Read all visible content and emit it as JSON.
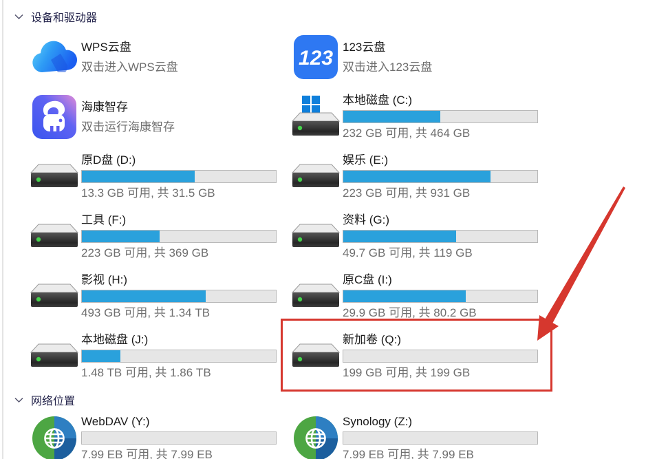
{
  "header": {
    "devices_label": "设备和驱动器",
    "network_label": "网络位置"
  },
  "tiles": [
    {
      "id": "wps-cloud",
      "icon": "wps-cloud",
      "title": "WPS云盘",
      "subtitle": "双击进入WPS云盘"
    },
    {
      "id": "123-cloud",
      "icon": "cloud-123",
      "title": "123云盘",
      "subtitle": "双击进入123云盘"
    },
    {
      "id": "hikvision",
      "icon": "hikvision",
      "title": "海康智存",
      "subtitle": "双击运行海康智存"
    },
    {
      "id": "drive-c",
      "icon": "windows-drive",
      "title": "本地磁盘 (C:)",
      "subtitle": "232 GB 可用, 共 464 GB",
      "used_percent": 50
    },
    {
      "id": "drive-d",
      "icon": "drive",
      "title": "原D盘 (D:)",
      "subtitle": "13.3 GB 可用, 共 31.5 GB",
      "used_percent": 58
    },
    {
      "id": "drive-e",
      "icon": "drive",
      "title": "娱乐 (E:)",
      "subtitle": "223 GB 可用, 共 931 GB",
      "used_percent": 76
    },
    {
      "id": "drive-f",
      "icon": "drive",
      "title": "工具 (F:)",
      "subtitle": "223 GB 可用, 共 369 GB",
      "used_percent": 40
    },
    {
      "id": "drive-g",
      "icon": "drive",
      "title": "资料 (G:)",
      "subtitle": "49.7 GB 可用, 共 119 GB",
      "used_percent": 58
    },
    {
      "id": "drive-h",
      "icon": "drive",
      "title": "影视 (H:)",
      "subtitle": "493 GB 可用, 共 1.34 TB",
      "used_percent": 64
    },
    {
      "id": "drive-i",
      "icon": "drive",
      "title": "原C盘 (I:)",
      "subtitle": "29.9 GB 可用, 共 80.2 GB",
      "used_percent": 63
    },
    {
      "id": "drive-j",
      "icon": "drive",
      "title": "本地磁盘 (J:)",
      "subtitle": "1.48 TB 可用, 共 1.86 TB",
      "used_percent": 20
    },
    {
      "id": "drive-q",
      "icon": "drive",
      "title": "新加卷 (Q:)",
      "subtitle": "199 GB 可用, 共 199 GB",
      "used_percent": 0,
      "highlighted": true
    }
  ],
  "network_tiles": [
    {
      "id": "webdav-y",
      "icon": "network-globe",
      "title": "WebDAV (Y:)",
      "subtitle": "7.99 EB 可用, 共 7.99 EB",
      "used_percent": 0
    },
    {
      "id": "synology-z",
      "icon": "network-globe",
      "title": "Synology (Z:)",
      "subtitle": "7.99 EB 可用, 共 7.99 EB",
      "used_percent": 0
    }
  ],
  "colors": {
    "bar_fill": "#2aa1dc",
    "bar_track": "#e6e6e6",
    "bar_border": "#b9b9b9",
    "title_text": "#1b1b1b",
    "subtitle_text": "#6f6f6f",
    "header_text": "#26264d",
    "annotation_red": "#d6372e"
  }
}
